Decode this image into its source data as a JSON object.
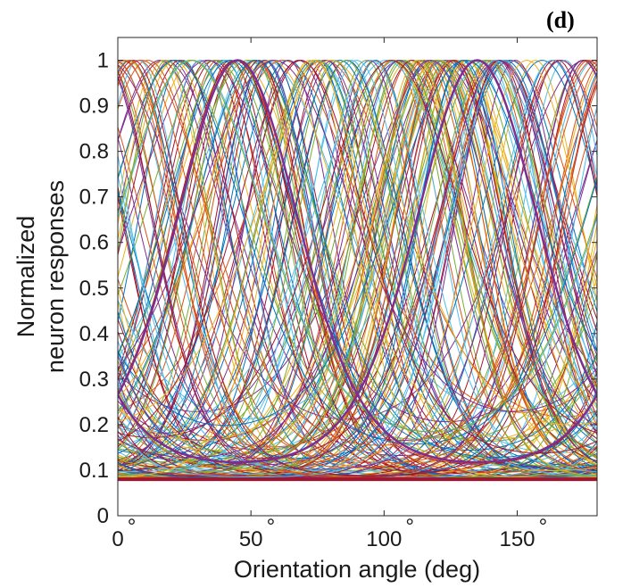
{
  "panel_label": "(d)",
  "chart_data": {
    "type": "line",
    "xlabel": "Orientation angle (deg)",
    "ylabel_lines": [
      "Normalized",
      "neuron responses"
    ],
    "xlim": [
      0,
      180
    ],
    "ylim": [
      0,
      1.05
    ],
    "x_ticks": [
      0,
      50,
      100,
      150
    ],
    "x_tick_labels": [
      "0",
      "50",
      "100",
      "150"
    ],
    "x_tick_suffix": "°",
    "y_ticks": [
      0,
      0.1,
      0.2,
      0.3,
      0.4,
      0.5,
      0.6,
      0.7,
      0.8,
      0.9,
      1
    ],
    "y_tick_labels": [
      "0",
      "0.1",
      "0.2",
      "0.3",
      "0.4",
      "0.5",
      "0.6",
      "0.7",
      "0.8",
      "0.9",
      "1"
    ],
    "grid": false,
    "series_description": "Dense family of overlapping orientation tuning curves, each peaking at 1 and with a baseline near 0.08, preferred orientations spread across 0–180 deg",
    "tuning_baseline": 0.08,
    "tuning_peak": 1.0,
    "num_curves": 180,
    "preferred_orientation_range": [
      0,
      180
    ],
    "highlighted_curves_preferred_deg": [
      45,
      135
    ],
    "colors": [
      "#0072BD",
      "#D95319",
      "#EDB120",
      "#7E2F8E",
      "#77AC30",
      "#4DBEEE",
      "#A2142F"
    ]
  }
}
